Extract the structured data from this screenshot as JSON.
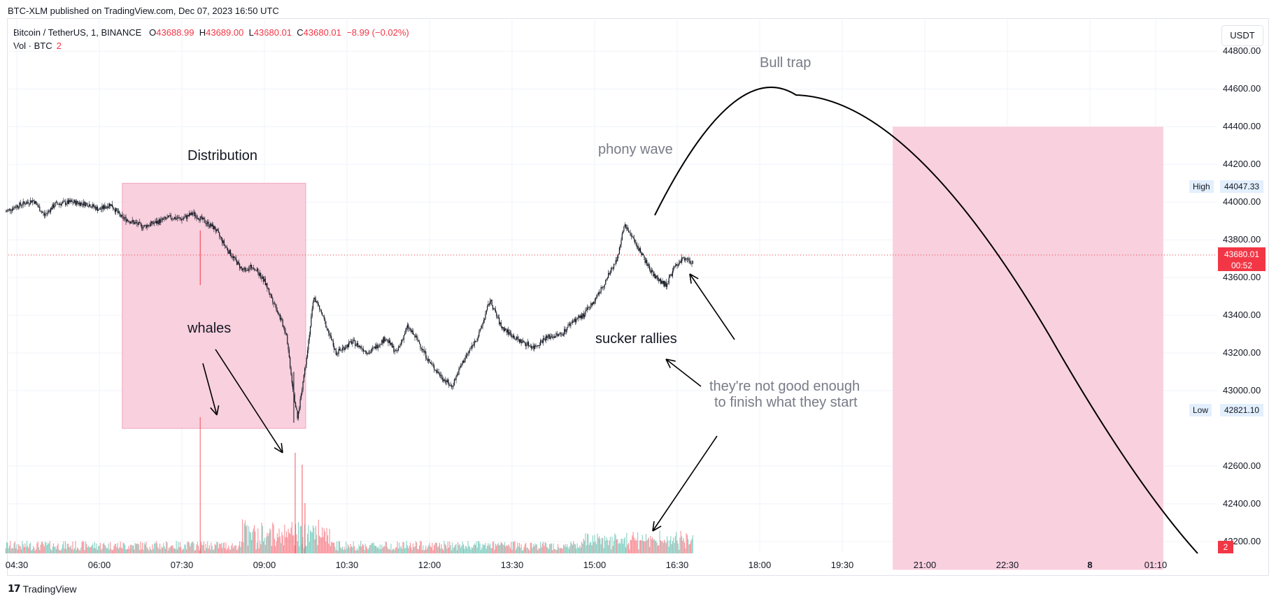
{
  "header": {
    "published": "BTC-XLM published on TradingView.com, Dec 07, 2023 16:50 UTC"
  },
  "legend": {
    "symbol": "Bitcoin / TetherUS, 1, BINANCE",
    "o_label": "O",
    "o_value": "43688.99",
    "h_label": "H",
    "h_value": "43689.00",
    "l_label": "L",
    "l_value": "43680.01",
    "c_label": "C",
    "c_value": "43680.01",
    "change": "−8.99 (−0.02%)",
    "vol_label": "Vol · BTC",
    "vol_value": "2"
  },
  "currency_button": "USDT",
  "price_tags": {
    "high_label": "High",
    "high_value": "44047.33",
    "low_label": "Low",
    "low_value": "42821.10",
    "last_value": "43680.01",
    "countdown": "00:52",
    "volume_value": "2"
  },
  "annotations": {
    "distribution": "Distribution",
    "whales": "whales",
    "phony_wave": "phony wave",
    "bull_trap": "Bull trap",
    "sucker_rallies": "sucker rallies",
    "not_good_line1": "they're not good enough",
    "not_good_line2": "to finish what they start"
  },
  "footer": {
    "brand": "TradingView"
  },
  "colors": {
    "up": "#22ab94",
    "down": "#f23645",
    "box": "#f8c8d8",
    "text": "#131722",
    "muted": "#787b86"
  },
  "chart_data": {
    "type": "candlestick",
    "symbol": "Bitcoin / TetherUS",
    "interval": "1",
    "exchange": "BINANCE",
    "y_ticks": [
      "44800.00",
      "44600.00",
      "44400.00",
      "44200.00",
      "44000.00",
      "43800.00",
      "43600.00",
      "43400.00",
      "43200.00",
      "43000.00",
      "42600.00",
      "42400.00",
      "42200.00"
    ],
    "x_ticks": [
      "04:30",
      "06:00",
      "07:30",
      "09:00",
      "10:30",
      "12:00",
      "13:30",
      "15:00",
      "16:30",
      "18:00",
      "19:30",
      "21:00",
      "22:30",
      "8",
      "01:10"
    ],
    "ylim": [
      42050,
      44900
    ],
    "price_path": [
      [
        4.3,
        43950
      ],
      [
        4.5,
        43980
      ],
      [
        4.8,
        44010
      ],
      [
        5.0,
        43930
      ],
      [
        5.2,
        43990
      ],
      [
        5.5,
        44000
      ],
      [
        5.8,
        43990
      ],
      [
        6.0,
        43960
      ],
      [
        6.2,
        43990
      ],
      [
        6.4,
        43920
      ],
      [
        6.8,
        43870
      ],
      [
        7.0,
        43890
      ],
      [
        7.3,
        43920
      ],
      [
        7.5,
        43910
      ],
      [
        7.7,
        43940
      ],
      [
        7.9,
        43900
      ],
      [
        8.1,
        43860
      ],
      [
        8.3,
        43760
      ],
      [
        8.6,
        43640
      ],
      [
        8.8,
        43660
      ],
      [
        9.0,
        43580
      ],
      [
        9.2,
        43450
      ],
      [
        9.4,
        43300
      ],
      [
        9.5,
        43050
      ],
      [
        9.6,
        42850
      ],
      [
        9.75,
        43150
      ],
      [
        9.9,
        43500
      ],
      [
        10.05,
        43400
      ],
      [
        10.3,
        43200
      ],
      [
        10.6,
        43260
      ],
      [
        10.9,
        43200
      ],
      [
        11.2,
        43280
      ],
      [
        11.4,
        43200
      ],
      [
        11.6,
        43340
      ],
      [
        11.8,
        43260
      ],
      [
        12.0,
        43150
      ],
      [
        12.2,
        43080
      ],
      [
        12.4,
        43020
      ],
      [
        12.6,
        43150
      ],
      [
        12.9,
        43300
      ],
      [
        13.1,
        43480
      ],
      [
        13.3,
        43340
      ],
      [
        13.6,
        43270
      ],
      [
        13.9,
        43230
      ],
      [
        14.1,
        43280
      ],
      [
        14.4,
        43300
      ],
      [
        14.6,
        43370
      ],
      [
        14.8,
        43400
      ],
      [
        15.0,
        43480
      ],
      [
        15.2,
        43580
      ],
      [
        15.4,
        43700
      ],
      [
        15.55,
        43880
      ],
      [
        15.7,
        43800
      ],
      [
        15.85,
        43730
      ],
      [
        16.0,
        43640
      ],
      [
        16.15,
        43590
      ],
      [
        16.3,
        43560
      ],
      [
        16.45,
        43650
      ],
      [
        16.6,
        43700
      ],
      [
        16.8,
        43680
      ]
    ],
    "volume_spikes": [
      {
        "time": "07:50",
        "volume": "large"
      },
      {
        "time": "09:32",
        "volume": "large"
      }
    ],
    "boxes": [
      {
        "label": "Distribution",
        "from_time": "06:25",
        "to_time": "09:45",
        "price_top": 44100,
        "price_bottom": 42800
      },
      {
        "label": "",
        "from_time": "20:25",
        "to_time": "01:20",
        "price_top": 44400,
        "price_bottom": 42050
      }
    ]
  }
}
